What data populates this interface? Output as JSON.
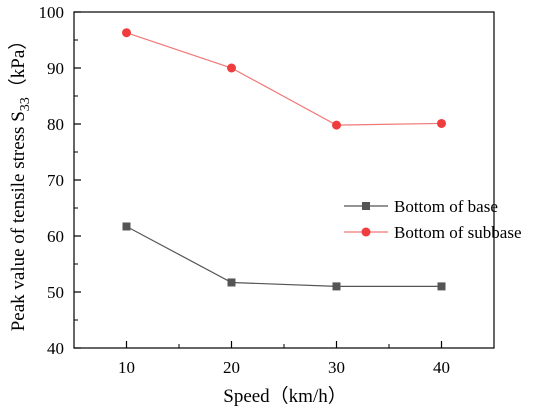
{
  "chart_data": {
    "type": "line",
    "x": [
      10,
      20,
      30,
      40
    ],
    "xticks": [
      10,
      20,
      30,
      40
    ],
    "xlim": [
      5,
      45
    ],
    "yticks": [
      40,
      50,
      60,
      70,
      80,
      90,
      100
    ],
    "ylim": [
      40,
      100
    ],
    "xlabel": "Speed（km/h）",
    "ylabel": "Peak value of tensile stress S",
    "ylabel_sub": "33",
    "ylabel_unit": "（kPa）",
    "grid": false,
    "legend_position": "center-right",
    "series": [
      {
        "name": "Bottom of base",
        "marker": "square",
        "color": "#555555",
        "line_color": "#555555",
        "values": [
          61.7,
          51.7,
          51.0,
          51.0
        ]
      },
      {
        "name": "Bottom of subbase",
        "marker": "circle",
        "color": "#f03c3c",
        "line_color": "#f07878",
        "values": [
          96.3,
          90.0,
          79.8,
          80.1
        ]
      }
    ]
  }
}
